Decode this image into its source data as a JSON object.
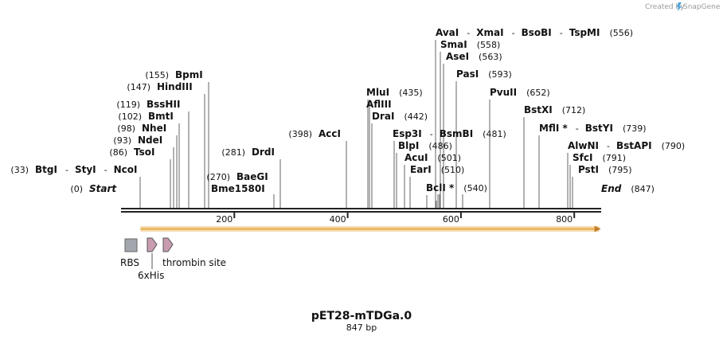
{
  "brand": {
    "text": "Created by",
    "logo_text": "SnapGene"
  },
  "map": {
    "name": "pET28-mTDGa.0",
    "length_label": "847 bp",
    "length": 847,
    "ticks": [
      {
        "value": 200,
        "label": "200"
      },
      {
        "value": 400,
        "label": "400"
      },
      {
        "value": 600,
        "label": "600"
      },
      {
        "value": 800,
        "label": "800"
      }
    ]
  },
  "sites": [
    {
      "id": "start",
      "pos": 0,
      "pos_label": "(0)",
      "names": [
        "Start"
      ],
      "italic": true
    },
    {
      "id": "btgi",
      "pos": 33,
      "pos_label": "(33)",
      "names": [
        "BtgI",
        "StyI",
        "NcoI"
      ]
    },
    {
      "id": "tsoi",
      "pos": 86,
      "pos_label": "(86)",
      "names": [
        "TsoI"
      ]
    },
    {
      "id": "ndei",
      "pos": 93,
      "pos_label": "(93)",
      "names": [
        "NdeI"
      ]
    },
    {
      "id": "nhei",
      "pos": 98,
      "pos_label": "(98)",
      "names": [
        "NheI"
      ]
    },
    {
      "id": "bmti",
      "pos": 102,
      "pos_label": "(102)",
      "names": [
        "BmtI"
      ]
    },
    {
      "id": "bsshii",
      "pos": 119,
      "pos_label": "(119)",
      "names": [
        "BssHII"
      ]
    },
    {
      "id": "hindiii",
      "pos": 147,
      "pos_label": "(147)",
      "names": [
        "HindIII"
      ]
    },
    {
      "id": "bpmi",
      "pos": 155,
      "pos_label": "(155)",
      "names": [
        "BpmI"
      ]
    },
    {
      "id": "baegi",
      "pos": 270,
      "pos_label": "(270)",
      "names": [
        "BaeGI"
      ]
    },
    {
      "id": "bme1580i",
      "pos": 270,
      "pos_label": "",
      "names": [
        "Bme1580I"
      ]
    },
    {
      "id": "drdi",
      "pos": 281,
      "pos_label": "(281)",
      "names": [
        "DrdI"
      ]
    },
    {
      "id": "acci",
      "pos": 398,
      "pos_label": "(398)",
      "names": [
        "AccI"
      ]
    },
    {
      "id": "mlui",
      "pos": 435,
      "pos_label": "(435)",
      "names": [
        "MluI"
      ]
    },
    {
      "id": "afliii",
      "pos": 435,
      "pos_label": "",
      "names": [
        "AflIII"
      ]
    },
    {
      "id": "drai",
      "pos": 442,
      "pos_label": "(442)",
      "names": [
        "DraI"
      ]
    },
    {
      "id": "esp3i",
      "pos": 481,
      "pos_label": "(481)",
      "names": [
        "Esp3I",
        "BsmBI"
      ]
    },
    {
      "id": "blpi",
      "pos": 486,
      "pos_label": "(486)",
      "names": [
        "BlpI"
      ]
    },
    {
      "id": "acui",
      "pos": 501,
      "pos_label": "(501)",
      "names": [
        "AcuI"
      ]
    },
    {
      "id": "eari",
      "pos": 510,
      "pos_label": "(510)",
      "names": [
        "EarI"
      ]
    },
    {
      "id": "bcli",
      "pos": 540,
      "pos_label": "(540)",
      "names": [
        "BclI *"
      ]
    },
    {
      "id": "avai",
      "pos": 556,
      "pos_label": "(556)",
      "names": [
        "AvaI",
        "XmaI",
        "BsoBI",
        "TspMI"
      ]
    },
    {
      "id": "smai",
      "pos": 558,
      "pos_label": "(558)",
      "names": [
        "SmaI"
      ]
    },
    {
      "id": "asei",
      "pos": 563,
      "pos_label": "(563)",
      "names": [
        "AseI"
      ]
    },
    {
      "id": "pasi",
      "pos": 593,
      "pos_label": "(593)",
      "names": [
        "PasI"
      ]
    },
    {
      "id": "pvuii",
      "pos": 652,
      "pos_label": "(652)",
      "names": [
        "PvuII"
      ]
    },
    {
      "id": "bstxi",
      "pos": 712,
      "pos_label": "(712)",
      "names": [
        "BstXI"
      ]
    },
    {
      "id": "mfli",
      "pos": 739,
      "pos_label": "(739)",
      "names": [
        "MflI *",
        "BstYI"
      ]
    },
    {
      "id": "alwni",
      "pos": 790,
      "pos_label": "(790)",
      "names": [
        "AlwNI",
        "BstAPI"
      ]
    },
    {
      "id": "sfci",
      "pos": 791,
      "pos_label": "(791)",
      "names": [
        "SfcI"
      ]
    },
    {
      "id": "psti",
      "pos": 795,
      "pos_label": "(795)",
      "names": [
        "PstI"
      ]
    },
    {
      "id": "end",
      "pos": 847,
      "pos_label": "(847)",
      "names": [
        "End"
      ],
      "italic": true
    }
  ],
  "features": [
    {
      "id": "rbs",
      "label": "RBS",
      "color": "#a3a6ad"
    },
    {
      "id": "6xhis",
      "label": "6xHis",
      "color": "#c99bb0"
    },
    {
      "id": "thrombin",
      "label": "thrombin site",
      "color": "#c99bb0"
    }
  ],
  "orf": {
    "start": 33,
    "end": 847,
    "color": "#e8b35a"
  },
  "colors": {
    "backbone": "#222222",
    "line": "#555555"
  }
}
